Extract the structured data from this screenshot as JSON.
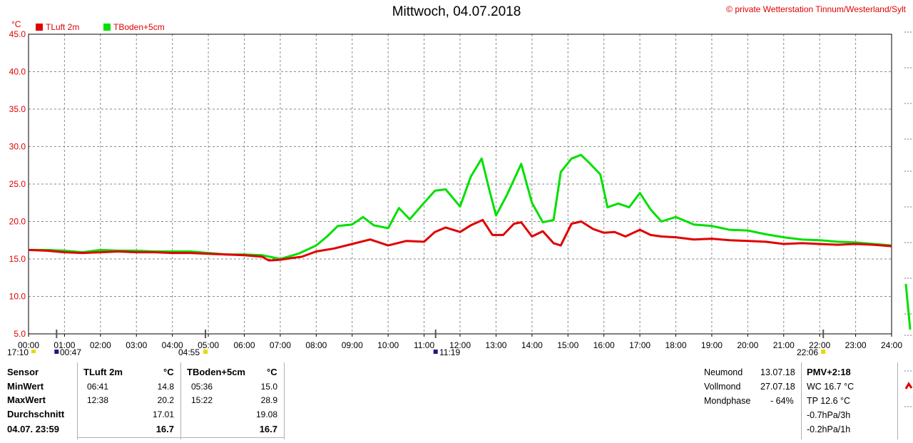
{
  "header": {
    "title": "Mittwoch, 04.07.2018",
    "credit": "© private Wetterstation Tinnum/Westerland/Sylt",
    "unit": "°C"
  },
  "legend": [
    {
      "label": "TLuft 2m",
      "color": "#e00000"
    },
    {
      "label": "TBoden+5cm",
      "color": "#00e000"
    }
  ],
  "chart_data": {
    "type": "line",
    "ylim": [
      5.0,
      45.0
    ],
    "yticks": [
      "5.0",
      "10.0",
      "15.0",
      "20.0",
      "25.0",
      "30.0",
      "35.0",
      "40.0",
      "45.0"
    ],
    "xlim": [
      0,
      24
    ],
    "xticks": [
      "00:00",
      "01:00",
      "02:00",
      "03:00",
      "04:00",
      "05:00",
      "06:00",
      "07:00",
      "08:00",
      "09:00",
      "10:00",
      "11:00",
      "12:00",
      "13:00",
      "14:00",
      "15:00",
      "16:00",
      "17:00",
      "18:00",
      "19:00",
      "20:00",
      "21:00",
      "22:00",
      "23:00",
      "24:00"
    ],
    "grid": true,
    "series": [
      {
        "name": "TLuft 2m",
        "color": "#e00000",
        "x": [
          0,
          0.5,
          1,
          1.5,
          2,
          2.5,
          3,
          3.5,
          4,
          4.5,
          5,
          5.5,
          6,
          6.5,
          6.68,
          7,
          7.3,
          7.6,
          8,
          8.5,
          9,
          9.5,
          10,
          10.5,
          11,
          11.3,
          11.6,
          12,
          12.3,
          12.63,
          12.9,
          13.2,
          13.5,
          13.7,
          14,
          14.3,
          14.6,
          14.8,
          15.1,
          15.37,
          15.7,
          16,
          16.3,
          16.6,
          17,
          17.3,
          17.6,
          18,
          18.5,
          19,
          19.5,
          20,
          20.5,
          21,
          21.5,
          22,
          22.5,
          23,
          23.5,
          24
        ],
        "values": [
          16.2,
          16.1,
          15.9,
          15.8,
          15.9,
          16.0,
          15.9,
          15.9,
          15.8,
          15.8,
          15.7,
          15.6,
          15.5,
          15.3,
          14.8,
          14.9,
          15.1,
          15.3,
          16.0,
          16.4,
          17.0,
          17.6,
          16.8,
          17.4,
          17.3,
          18.6,
          19.2,
          18.6,
          19.5,
          20.2,
          18.2,
          18.2,
          19.7,
          19.9,
          18.0,
          18.7,
          17.1,
          16.8,
          19.7,
          20.0,
          19.0,
          18.5,
          18.6,
          18.0,
          18.9,
          18.2,
          18.0,
          17.9,
          17.6,
          17.7,
          17.5,
          17.4,
          17.3,
          17.0,
          17.1,
          17.0,
          16.9,
          17.0,
          16.9,
          16.7
        ]
      },
      {
        "name": "TBoden+5cm",
        "color": "#00e000",
        "x": [
          0,
          0.5,
          1,
          1.5,
          2,
          2.5,
          3,
          3.5,
          4,
          4.5,
          5,
          5.5,
          6,
          6.5,
          7,
          7.5,
          8,
          8.3,
          8.6,
          9,
          9.3,
          9.6,
          10,
          10.3,
          10.6,
          11,
          11.3,
          11.6,
          12,
          12.3,
          12.6,
          12.8,
          13,
          13.3,
          13.7,
          14,
          14.3,
          14.6,
          14.8,
          15.1,
          15.36,
          15.6,
          15.9,
          16.1,
          16.4,
          16.7,
          17,
          17.3,
          17.6,
          18,
          18.5,
          19,
          19.5,
          20,
          20.5,
          21,
          21.5,
          22,
          22.5,
          23,
          23.5,
          24
        ],
        "values": [
          16.2,
          16.2,
          16.1,
          15.9,
          16.2,
          16.1,
          16.1,
          16.0,
          16.0,
          16.0,
          15.8,
          15.6,
          15.6,
          15.5,
          15.0,
          15.7,
          16.8,
          18.0,
          19.4,
          19.6,
          20.6,
          19.5,
          19.1,
          21.8,
          20.3,
          22.5,
          24.1,
          24.3,
          22.0,
          26.0,
          28.4,
          24.5,
          20.8,
          23.5,
          27.7,
          22.5,
          19.9,
          20.2,
          26.6,
          28.4,
          28.9,
          27.8,
          26.3,
          21.9,
          22.4,
          21.9,
          23.8,
          21.6,
          20.0,
          20.6,
          19.6,
          19.4,
          18.9,
          18.8,
          18.3,
          17.9,
          17.6,
          17.5,
          17.3,
          17.2,
          17.0,
          16.8
        ]
      }
    ]
  },
  "markers": {
    "left": "17:10",
    "t1": "00:47",
    "t2": "04:55",
    "t3": "11:19",
    "t4": "22:06"
  },
  "table": {
    "col_sensor": "Sensor",
    "col_a": "TLuft 2m",
    "col_a_unit": "°C",
    "col_b": "TBoden+5cm",
    "col_b_unit": "°C",
    "rows": [
      {
        "label": "MinWert",
        "a_time": "06:41",
        "a_val": "14.8",
        "b_time": "05:36",
        "b_val": "15.0"
      },
      {
        "label": "MaxWert",
        "a_time": "12:38",
        "a_val": "20.2",
        "b_time": "15:22",
        "b_val": "28.9"
      },
      {
        "label": "Durchschnitt",
        "a_time": "",
        "a_val": "17.01",
        "b_time": "",
        "b_val": "19.08"
      },
      {
        "label": "04.07. 23:59",
        "a_time": "",
        "a_val": "16.7",
        "b_time": "",
        "b_val": "16.7"
      }
    ]
  },
  "moon": {
    "rows": [
      {
        "label": "Neumond",
        "value": "13.07.18"
      },
      {
        "label": "Vollmond",
        "value": "27.07.18"
      },
      {
        "label": "Mondphase",
        "value": "- 64%"
      }
    ]
  },
  "extra": {
    "title": "PMV+2:18",
    "lines": [
      "WC 16.7 °C",
      "TP 12.6 °C",
      "-0.7hPa/3h",
      "-0.2hPa/1h"
    ]
  }
}
